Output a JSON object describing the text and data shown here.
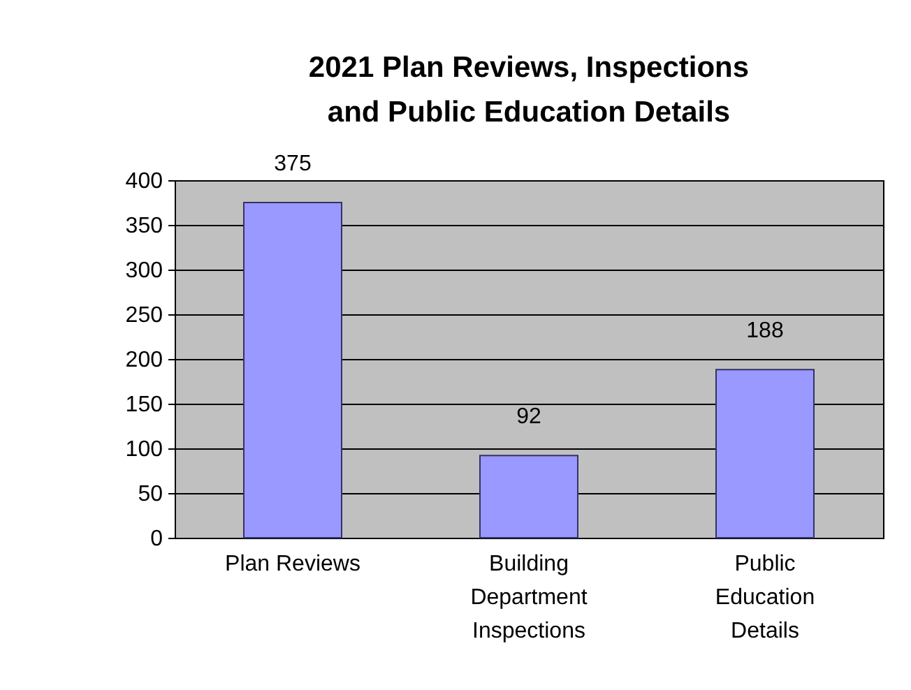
{
  "chart_data": {
    "type": "bar",
    "title": "2021 Plan Reviews, Inspections\nand Public Education Details",
    "categories": [
      "Plan Reviews",
      "Building\nDepartment\nInspections",
      "Public\nEducation\nDetails"
    ],
    "values": [
      375,
      92,
      188
    ],
    "color": "#9999ff",
    "ylim": [
      0,
      400
    ],
    "yticks": [
      0,
      50,
      100,
      150,
      200,
      250,
      300,
      350,
      400
    ],
    "grid": "y",
    "data_labels": true
  }
}
